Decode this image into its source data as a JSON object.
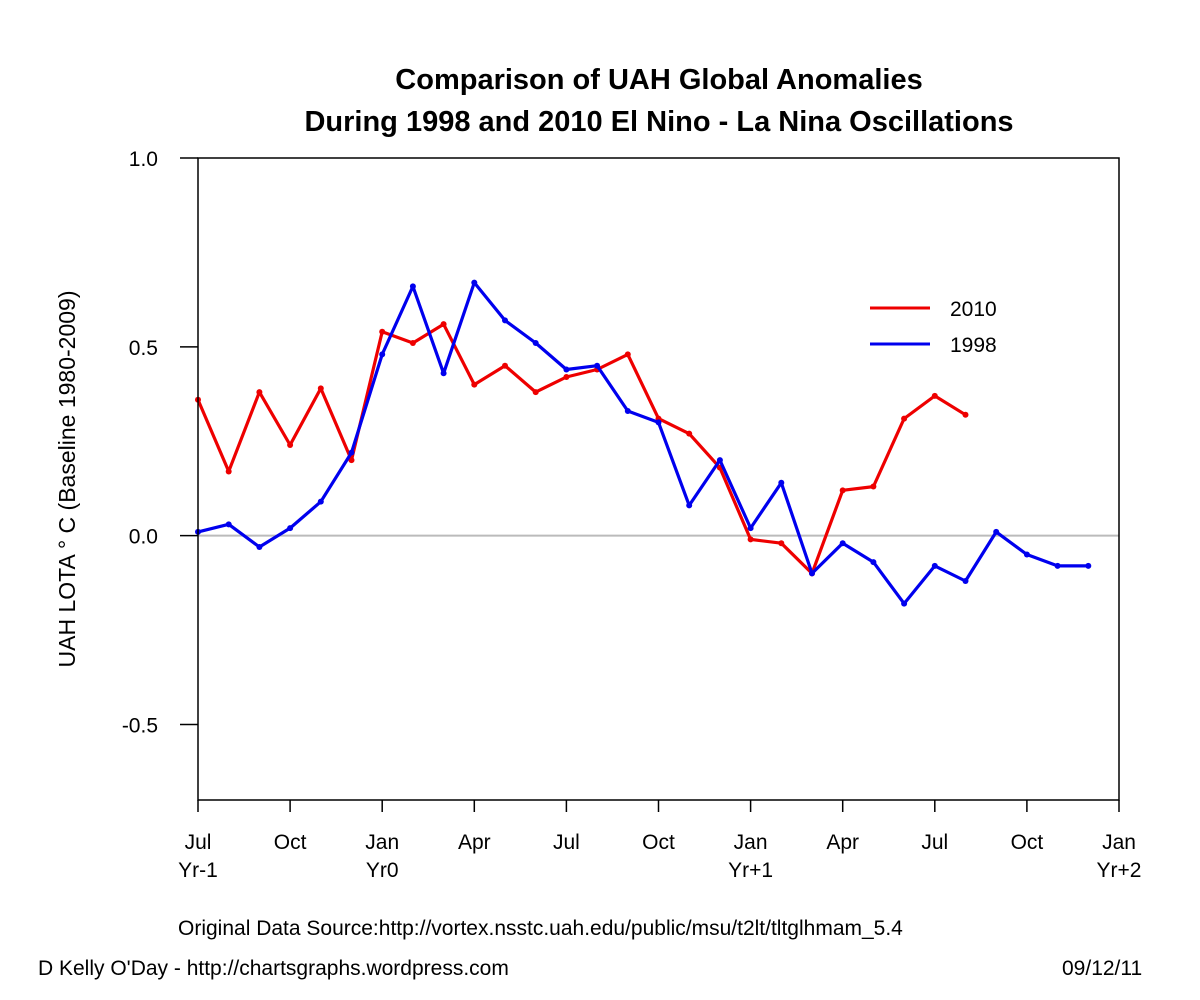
{
  "chart_data": {
    "type": "line",
    "title_line1": "Comparison of UAH Global Anomalies",
    "title_line2": "During 1998 and 2010 El Nino - La Nina Oscillations",
    "ylabel": "UAH LOTA ° C (Baseline 1980-2009)",
    "ylim": [
      -0.7,
      1.0
    ],
    "xlim": [
      0,
      30
    ],
    "y_ticks": [
      {
        "value": 1.0,
        "label": "1.0"
      },
      {
        "value": 0.5,
        "label": "0.5"
      },
      {
        "value": 0.0,
        "label": "0.0"
      },
      {
        "value": -0.5,
        "label": "-0.5"
      }
    ],
    "x_ticks": [
      {
        "value": 0,
        "label": "Jul",
        "sub": "Yr-1"
      },
      {
        "value": 3,
        "label": "Oct",
        "sub": ""
      },
      {
        "value": 6,
        "label": "Jan",
        "sub": "Yr0"
      },
      {
        "value": 9,
        "label": "Apr",
        "sub": ""
      },
      {
        "value": 12,
        "label": "Jul",
        "sub": ""
      },
      {
        "value": 15,
        "label": "Oct",
        "sub": ""
      },
      {
        "value": 18,
        "label": "Jan",
        "sub": "Yr+1"
      },
      {
        "value": 21,
        "label": "Apr",
        "sub": ""
      },
      {
        "value": 24,
        "label": "Jul",
        "sub": ""
      },
      {
        "value": 27,
        "label": "Oct",
        "sub": ""
      },
      {
        "value": 30,
        "label": "Jan",
        "sub": "Yr+2"
      }
    ],
    "reference_line": 0.0,
    "series": [
      {
        "name": "2010",
        "color": "#ee0000",
        "x": [
          0,
          1,
          2,
          3,
          4,
          5,
          6,
          7,
          8,
          9,
          10,
          11,
          12,
          13,
          14,
          15,
          16,
          17,
          18,
          19,
          20,
          21,
          22,
          23,
          24,
          25
        ],
        "values": [
          0.36,
          0.17,
          0.38,
          0.24,
          0.39,
          0.2,
          0.54,
          0.51,
          0.56,
          0.4,
          0.45,
          0.38,
          0.42,
          0.44,
          0.48,
          0.31,
          0.27,
          0.18,
          -0.01,
          -0.02,
          -0.1,
          0.12,
          0.13,
          0.31,
          0.37,
          0.32
        ]
      },
      {
        "name": "1998",
        "color": "#0000ee",
        "x": [
          0,
          1,
          2,
          3,
          4,
          5,
          6,
          7,
          8,
          9,
          10,
          11,
          12,
          13,
          14,
          15,
          16,
          17,
          18,
          19,
          20,
          21,
          22,
          23,
          24,
          25,
          26,
          27,
          28,
          29
        ],
        "values": [
          0.01,
          0.03,
          -0.03,
          0.02,
          0.09,
          0.22,
          0.48,
          0.66,
          0.43,
          0.67,
          0.57,
          0.51,
          0.44,
          0.45,
          0.33,
          0.3,
          0.08,
          0.2,
          0.02,
          0.14,
          -0.1,
          -0.02,
          -0.07,
          -0.18,
          -0.08,
          -0.12,
          0.01,
          -0.05,
          -0.08,
          -0.08
        ]
      }
    ]
  },
  "footer": {
    "source": "Original Data Source:http://vortex.nsstc.uah.edu/public/msu/t2lt/tltglhmam_5.4",
    "author": "D Kelly O'Day - http://chartsgraphs.wordpress.com",
    "date": "09/12/11"
  }
}
